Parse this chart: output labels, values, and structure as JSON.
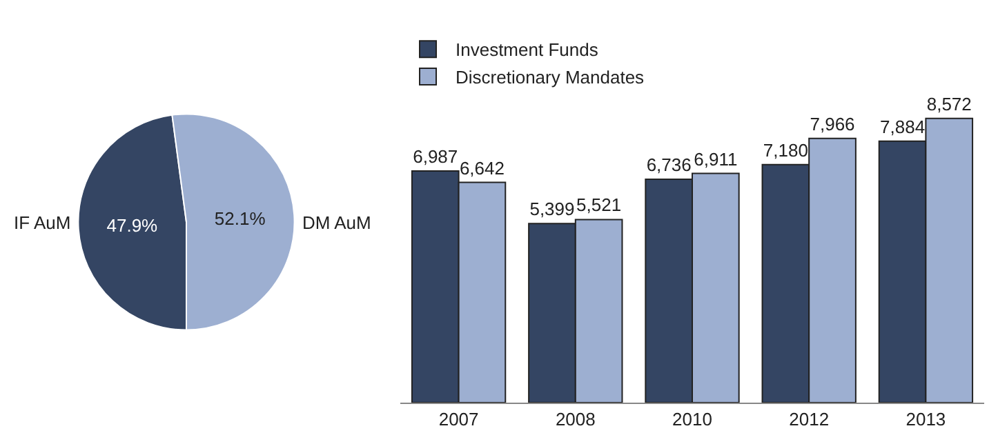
{
  "chart_data": [
    {
      "type": "pie",
      "categories": [
        "IF AuM",
        "DM AuM"
      ],
      "values": [
        47.9,
        52.1
      ],
      "colors": [
        "#344563",
        "#9dafd1"
      ],
      "value_labels": [
        "47.9%",
        "52.1%"
      ],
      "legend": false
    },
    {
      "type": "bar",
      "categories": [
        "2007",
        "2008",
        "2010",
        "2012",
        "2013"
      ],
      "series": [
        {
          "name": "Investment Funds",
          "color": "#344563",
          "values": [
            6987,
            5399,
            6736,
            7180,
            7884
          ],
          "value_labels": [
            "6,987",
            "5,399",
            "6,736",
            "7,180",
            "7,884"
          ]
        },
        {
          "name": "Discretionary Mandates",
          "color": "#9dafd1",
          "values": [
            6642,
            5521,
            6911,
            7966,
            8572
          ],
          "value_labels": [
            "6,642",
            "5,521",
            "6,911",
            "7,966",
            "8,572"
          ]
        }
      ],
      "legend": "top left"
    }
  ]
}
